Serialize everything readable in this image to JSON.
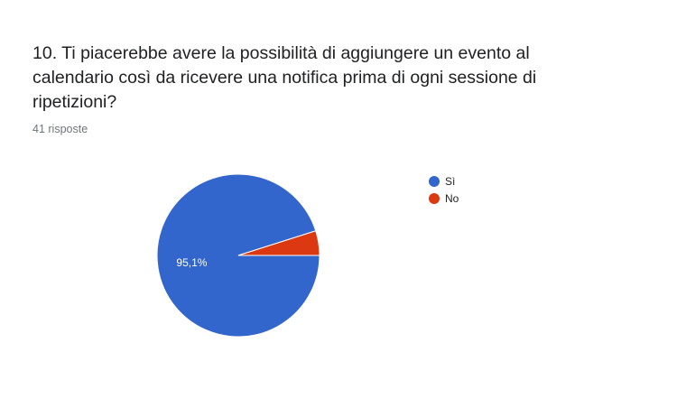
{
  "question": {
    "title": "10. Ti piacerebbe avere la possibilità di aggiungere un evento al calendario così da ricevere una notifica prima di ogni sessione di ripetizioni?",
    "responses": "41 risposte"
  },
  "chart_data": {
    "type": "pie",
    "categories": [
      "Sì",
      "No"
    ],
    "values": [
      95.1,
      4.9
    ],
    "data_labels": [
      "95,1%",
      ""
    ],
    "colors": [
      "#3366cc",
      "#dc3912"
    ],
    "legend_position": "right"
  }
}
